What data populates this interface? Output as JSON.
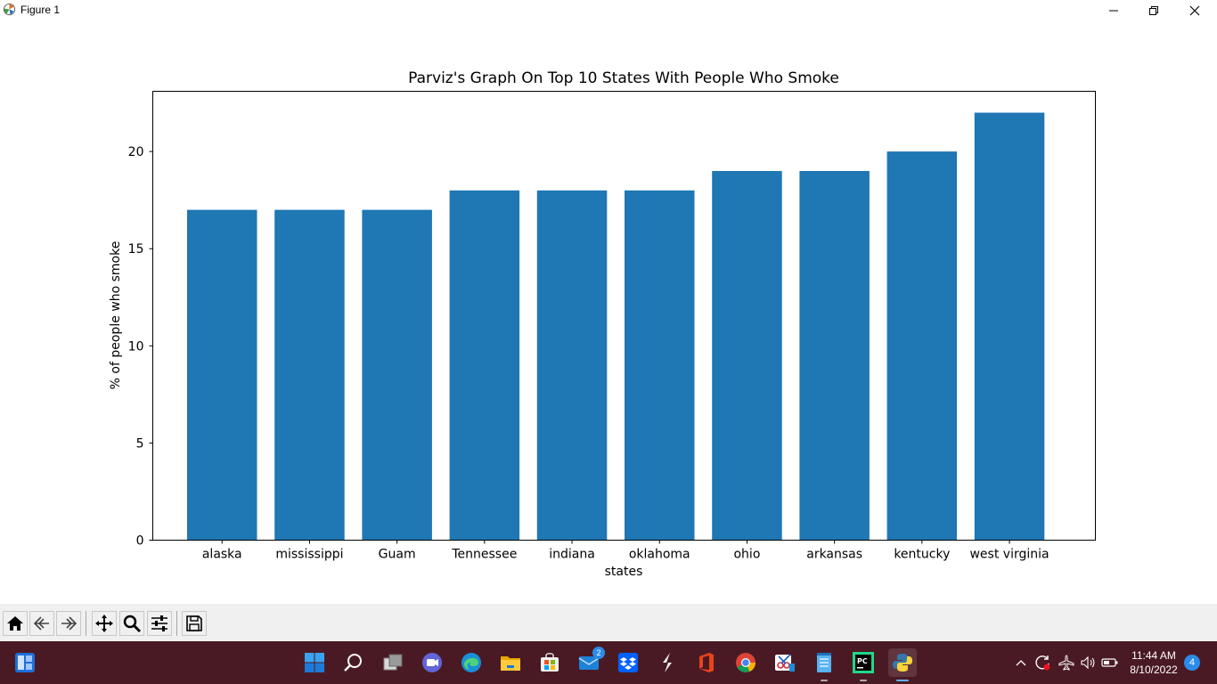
{
  "window": {
    "title": "Figure 1",
    "app_icon": "matplotlib-icon",
    "buttons": [
      "minimize-icon",
      "restore-icon",
      "close-icon"
    ]
  },
  "chart_data": {
    "type": "bar",
    "title": "Parviz's Graph On Top 10 States With People Who Smoke",
    "xlabel": "states",
    "ylabel": "% of people who smoke",
    "categories": [
      "alaska",
      "mississippi",
      "Guam",
      "Tennessee",
      "indiana",
      "oklahoma",
      "ohio",
      "arkansas",
      "kentucky",
      "west virginia"
    ],
    "values": [
      17,
      17,
      17,
      18,
      18,
      18,
      19,
      19,
      20,
      22
    ],
    "ylim": [
      0,
      23.1
    ],
    "yticks": [
      0,
      5,
      10,
      15,
      20
    ],
    "bar_color": "#1f77b4",
    "grid": false
  },
  "toolbar": {
    "buttons": [
      "home-icon",
      "back-icon",
      "forward-icon",
      "pan-icon",
      "zoom-icon",
      "configure-subplots-icon",
      "save-icon"
    ]
  },
  "taskbar": {
    "apps": [
      "widgets-icon",
      "start-icon",
      "search-icon",
      "task-view-icon",
      "teams-chat-icon",
      "edge-icon",
      "file-explorer-icon",
      "store-icon",
      "mail-icon",
      "dropbox-icon",
      "sublime-icon",
      "office-icon",
      "chrome-icon",
      "snipping-tool-icon",
      "notepad-icon",
      "pycharm-icon",
      "python-icon"
    ],
    "mail_badge": "2",
    "tray_icons": [
      "chevron-up-icon",
      "sync-icon",
      "airplane-mode-icon",
      "volume-icon",
      "battery-icon"
    ],
    "time": "11:44 AM",
    "date": "8/10/2022",
    "notification_count": "4"
  }
}
